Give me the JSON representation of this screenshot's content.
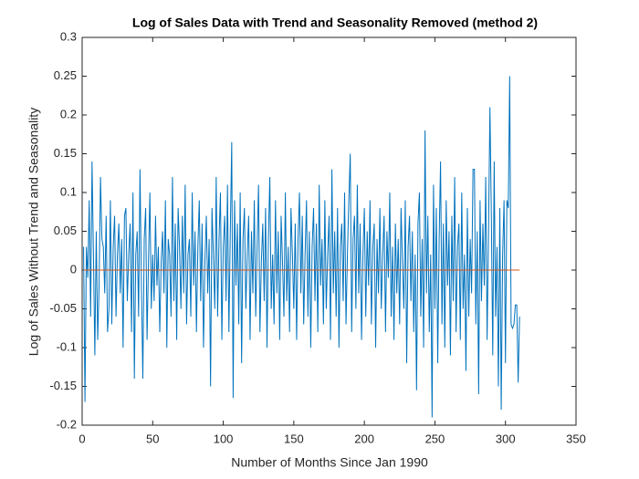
{
  "chart_data": {
    "type": "line",
    "title": "Log of Sales Data with Trend and Seasonality Removed (method 2)",
    "x_label": "Number of Months Since Jan 1990",
    "y_label": "Log of Sales Without Trend and Seasonality",
    "xlim": [
      0,
      350
    ],
    "xticks": [
      0,
      50,
      100,
      150,
      200,
      250,
      300,
      350
    ],
    "ylim": [
      -0.2,
      0.3
    ],
    "yticks": [
      -0.2,
      -0.15,
      -0.1,
      -0.05,
      0,
      0.05,
      0.1,
      0.15,
      0.2,
      0.25,
      0.3
    ],
    "grid": false,
    "series": [
      {
        "color": "#0072bd",
        "x": [
          1,
          2,
          3,
          4,
          5,
          6,
          7,
          8,
          9,
          10,
          11,
          12,
          13,
          14,
          15,
          16,
          17,
          18,
          19,
          20,
          21,
          22,
          23,
          24,
          25,
          26,
          27,
          28,
          29,
          30,
          31,
          32,
          33,
          34,
          35,
          36,
          37,
          38,
          39,
          40,
          41,
          42,
          43,
          44,
          45,
          46,
          47,
          48,
          49,
          50,
          51,
          52,
          53,
          54,
          55,
          56,
          57,
          58,
          59,
          60,
          61,
          62,
          63,
          64,
          65,
          66,
          67,
          68,
          69,
          70,
          71,
          72,
          73,
          74,
          75,
          76,
          77,
          78,
          79,
          80,
          81,
          82,
          83,
          84,
          85,
          86,
          87,
          88,
          89,
          90,
          91,
          92,
          93,
          94,
          95,
          96,
          97,
          98,
          99,
          100,
          101,
          102,
          103,
          104,
          105,
          106,
          107,
          108,
          109,
          110,
          111,
          112,
          113,
          114,
          115,
          116,
          117,
          118,
          119,
          120,
          121,
          122,
          123,
          124,
          125,
          126,
          127,
          128,
          129,
          130,
          131,
          132,
          133,
          134,
          135,
          136,
          137,
          138,
          139,
          140,
          141,
          142,
          143,
          144,
          145,
          146,
          147,
          148,
          149,
          150,
          151,
          152,
          153,
          154,
          155,
          156,
          157,
          158,
          159,
          160,
          161,
          162,
          163,
          164,
          165,
          166,
          167,
          168,
          169,
          170,
          171,
          172,
          173,
          174,
          175,
          176,
          177,
          178,
          179,
          180,
          181,
          182,
          183,
          184,
          185,
          186,
          187,
          188,
          189,
          190,
          191,
          192,
          193,
          194,
          195,
          196,
          197,
          198,
          199,
          200,
          201,
          202,
          203,
          204,
          205,
          206,
          207,
          208,
          209,
          210,
          211,
          212,
          213,
          214,
          215,
          216,
          217,
          218,
          219,
          220,
          221,
          222,
          223,
          224,
          225,
          226,
          227,
          228,
          229,
          230,
          231,
          232,
          233,
          234,
          235,
          236,
          237,
          238,
          239,
          240,
          241,
          242,
          243,
          244,
          245,
          246,
          247,
          248,
          249,
          250,
          251,
          252,
          253,
          254,
          255,
          256,
          257,
          258,
          259,
          260,
          261,
          262,
          263,
          264,
          265,
          266,
          267,
          268,
          269,
          270,
          271,
          272,
          273,
          274,
          275,
          276,
          277,
          278,
          279,
          280,
          281,
          282,
          283,
          284,
          285,
          286,
          287,
          288,
          289,
          290,
          291,
          292,
          293,
          294,
          295,
          296,
          297,
          298,
          299,
          300,
          301,
          302,
          303,
          304,
          305,
          306,
          307,
          308,
          309,
          310
        ],
        "values": [
          0.03,
          -0.17,
          0.03,
          -0.01,
          0.09,
          -0.06,
          0.14,
          0.02,
          -0.11,
          0.05,
          -0.09,
          -0.02,
          0.12,
          0.04,
          0.03,
          -0.03,
          0.07,
          -0.08,
          -0.05,
          0.09,
          -0.07,
          0.03,
          0.07,
          -0.06,
          0.02,
          0.06,
          -0.03,
          0.04,
          -0.1,
          0.07,
          0.08,
          -0.04,
          0.02,
          0.06,
          -0.08,
          0.1,
          -0.14,
          0.02,
          0.05,
          -0.06,
          0.13,
          -0.02,
          -0.14,
          0.04,
          0.08,
          -0.09,
          0.01,
          0.1,
          -0.05,
          0.02,
          -0.04,
          0.07,
          -0.02,
          0.03,
          -0.08,
          0.01,
          0.05,
          -0.03,
          0.09,
          -0.1,
          0.04,
          0.02,
          -0.06,
          0.12,
          -0.04,
          0.06,
          -0.09,
          0.08,
          0.03,
          -0.05,
          0.07,
          -0.03,
          0.11,
          -0.07,
          0.02,
          0.04,
          -0.06,
          0.1,
          -0.02,
          0.05,
          -0.08,
          0.03,
          0.09,
          -0.04,
          0.06,
          -0.1,
          0.01,
          0.07,
          -0.03,
          0.04,
          -0.15,
          0.08,
          0.02,
          -0.05,
          0.12,
          -0.06,
          0.04,
          0.1,
          -0.09,
          0.03,
          0.07,
          -0.04,
          0.11,
          -0.08,
          0.05,
          0.165,
          -0.165,
          0.09,
          -0.02,
          0.06,
          -0.07,
          0.1,
          -0.12,
          0.04,
          0.08,
          -0.05,
          0.02,
          0.07,
          -0.09,
          0.05,
          -0.03,
          0.09,
          -0.06,
          0.03,
          0.11,
          -0.08,
          0.01,
          0.06,
          -0.04,
          0.08,
          -0.1,
          0.04,
          0.12,
          -0.05,
          0.02,
          -0.07,
          0.09,
          -0.03,
          0.05,
          -0.09,
          0.07,
          0.01,
          -0.06,
          0.1,
          -0.04,
          0.03,
          -0.08,
          0.08,
          0.02,
          -0.05,
          0.06,
          -0.09,
          0.04,
          0.1,
          -0.03,
          0.07,
          -0.07,
          0.02,
          0.09,
          -0.06,
          0.05,
          -0.1,
          0.03,
          0.08,
          -0.04,
          0.06,
          -0.08,
          0.11,
          -0.02,
          0.04,
          -0.07,
          0.09,
          -0.05,
          0.02,
          0.07,
          -0.09,
          0.13,
          -0.03,
          0.05,
          -0.06,
          0.08,
          -0.1,
          0.03,
          0.06,
          -0.04,
          0.1,
          -0.07,
          0.02,
          0.09,
          0.15,
          -0.08,
          0.04,
          0.07,
          -0.05,
          0.11,
          -0.03,
          0.06,
          -0.09,
          0.02,
          0.08,
          -0.06,
          0.05,
          -0.02,
          0.09,
          -0.07,
          0.03,
          0.06,
          -0.1,
          0.04,
          -0.03,
          0.08,
          -0.05,
          0.02,
          0.07,
          -0.08,
          0.05,
          -0.01,
          0.1,
          -0.06,
          0.03,
          -0.09,
          0.06,
          -0.03,
          0.04,
          -0.07,
          0.08,
          0.01,
          -0.05,
          0.09,
          -0.12,
          0.03,
          0.07,
          -0.04,
          0.05,
          -0.08,
          0.02,
          -0.155,
          0.06,
          0.1,
          -0.06,
          0.04,
          -0.1,
          0.18,
          -0.03,
          0.07,
          -0.08,
          0.02,
          -0.19,
          0.11,
          -0.05,
          0.08,
          -0.12,
          0.04,
          0.14,
          -0.07,
          0.06,
          -0.1,
          0.09,
          -0.02,
          0.05,
          -0.11,
          0.07,
          -0.04,
          0.12,
          -0.08,
          0.03,
          0.06,
          -0.09,
          0.1,
          -0.05,
          0.02,
          -0.13,
          0.08,
          -0.06,
          0.04,
          -0.03,
          0.13,
          0.13,
          -0.07,
          0.05,
          -0.16,
          0.09,
          -0.04,
          0.06,
          -0.02,
          0.12,
          -0.09,
          0.05,
          0.21,
          0.07,
          -0.11,
          0.14,
          -0.06,
          0.03,
          -0.15,
          0.08,
          -0.18,
          0.02,
          0.09,
          -0.12,
          0.09,
          0.08,
          0.25,
          -0.07,
          -0.075,
          -0.07,
          -0.045,
          -0.045,
          -0.145,
          -0.06
        ]
      },
      {
        "color": "#d95319",
        "x": [
          1,
          310
        ],
        "values": [
          0,
          0
        ]
      }
    ]
  }
}
